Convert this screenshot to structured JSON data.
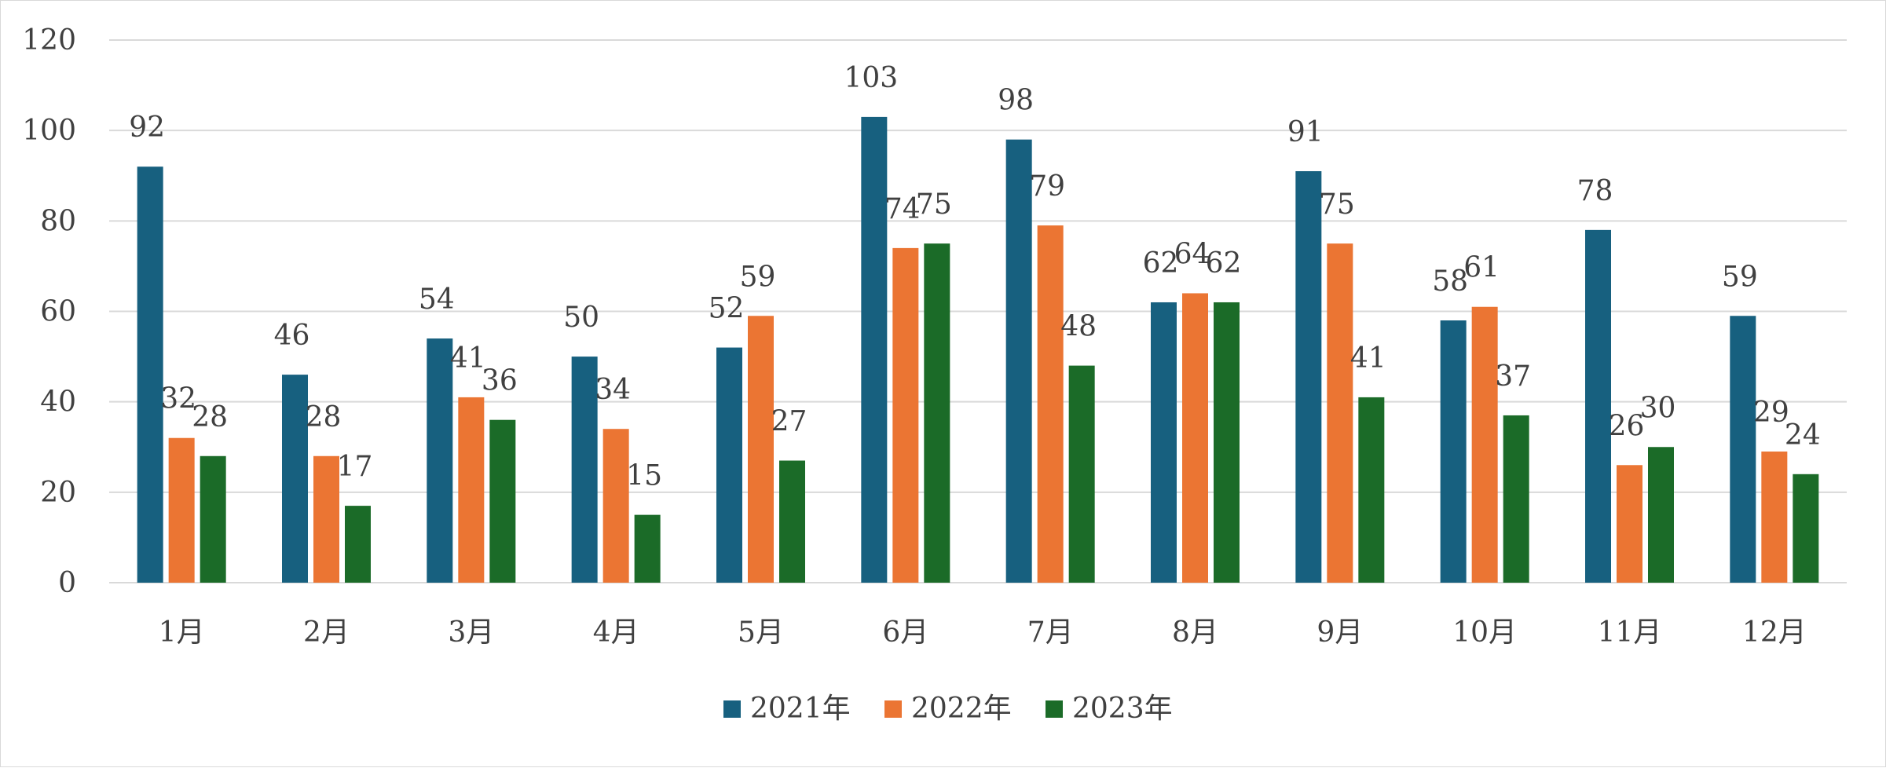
{
  "chart_data": {
    "type": "bar",
    "title": "",
    "xlabel": "",
    "ylabel": "",
    "ylim": [
      0,
      120
    ],
    "yticks": [
      0,
      20,
      40,
      60,
      80,
      100,
      120
    ],
    "grid": true,
    "legend_position": "bottom",
    "categories": [
      "1月",
      "2月",
      "3月",
      "4月",
      "5月",
      "6月",
      "7月",
      "8月",
      "9月",
      "10月",
      "11月",
      "12月"
    ],
    "series": [
      {
        "name": "2021年",
        "color": "#17607f",
        "values": [
          92,
          46,
          54,
          50,
          52,
          103,
          98,
          62,
          91,
          58,
          78,
          59
        ]
      },
      {
        "name": "2022年",
        "color": "#eb7533",
        "values": [
          32,
          28,
          41,
          34,
          59,
          74,
          79,
          64,
          75,
          61,
          26,
          29
        ]
      },
      {
        "name": "2023年",
        "color": "#1b6b28",
        "values": [
          28,
          17,
          36,
          15,
          27,
          75,
          48,
          62,
          41,
          37,
          30,
          24
        ]
      }
    ]
  }
}
